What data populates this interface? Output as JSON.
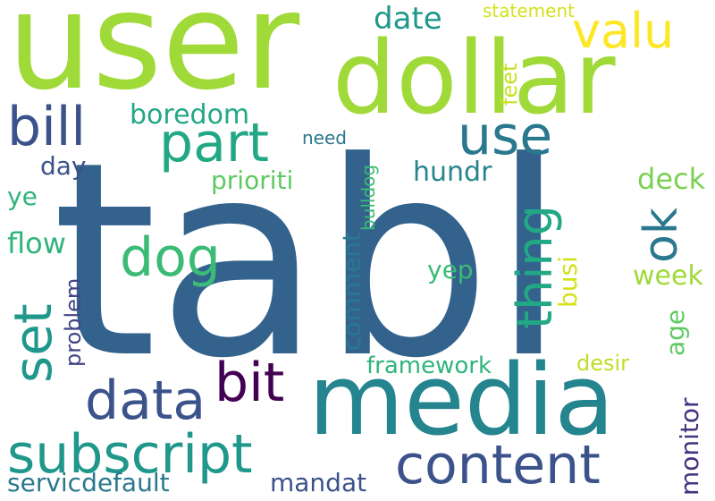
{
  "words": [
    {
      "text": "tabl",
      "color": "#33638d"
    },
    {
      "text": "user",
      "color": "#a0da39"
    },
    {
      "text": "dollar",
      "color": "#a0da39"
    },
    {
      "text": "media",
      "color": "#25858e"
    },
    {
      "text": "content",
      "color": "#3b528b"
    },
    {
      "text": "subscript",
      "color": "#1f988b"
    },
    {
      "text": "data",
      "color": "#3b528b"
    },
    {
      "text": "bit",
      "color": "#440154"
    },
    {
      "text": "part",
      "color": "#22a884"
    },
    {
      "text": "use",
      "color": "#2a788e"
    },
    {
      "text": "valu",
      "color": "#fde725"
    },
    {
      "text": "bill",
      "color": "#3b528b"
    },
    {
      "text": "dog",
      "color": "#3bbb75"
    },
    {
      "text": "set",
      "color": "#1f988b"
    },
    {
      "text": "thing",
      "color": "#22a884"
    },
    {
      "text": "ok",
      "color": "#2a788e"
    },
    {
      "text": "date",
      "color": "#1f988b"
    },
    {
      "text": "boredom",
      "color": "#22a884"
    },
    {
      "text": "prioriti",
      "color": "#5ec962"
    },
    {
      "text": "hundr",
      "color": "#25858e"
    },
    {
      "text": "deck",
      "color": "#7ad151"
    },
    {
      "text": "week",
      "color": "#a0da39"
    },
    {
      "text": "day",
      "color": "#3b528b"
    },
    {
      "text": "ye",
      "color": "#2fb47c"
    },
    {
      "text": "flow",
      "color": "#2fb47c"
    },
    {
      "text": "need",
      "color": "#2a788e"
    },
    {
      "text": "yep",
      "color": "#3bbb75"
    },
    {
      "text": "statement",
      "color": "#d2e21b"
    },
    {
      "text": "feet",
      "color": "#c8e020"
    },
    {
      "text": "bulldog",
      "color": "#3bbb75"
    },
    {
      "text": "comment",
      "color": "#2a788e"
    },
    {
      "text": "problem",
      "color": "#414487"
    },
    {
      "text": "busi",
      "color": "#d2e21b"
    },
    {
      "text": "age",
      "color": "#5ec962"
    },
    {
      "text": "framework",
      "color": "#2fb47c"
    },
    {
      "text": "desir",
      "color": "#bddf26"
    },
    {
      "text": "monitor",
      "color": "#46327e"
    },
    {
      "text": "servicdefault",
      "color": "#2a788e"
    },
    {
      "text": "mandat",
      "color": "#3b528b"
    }
  ]
}
